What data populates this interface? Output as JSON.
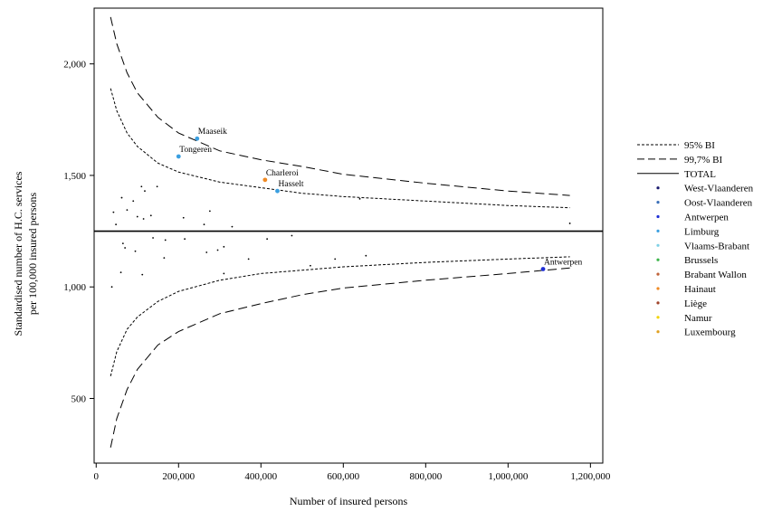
{
  "chart_data": {
    "type": "scatter",
    "title": "",
    "xlabel": "Number of insured persons",
    "ylabel_line1": "Standardised number of H.C. services",
    "ylabel_line2": "per 100,000 insured persons",
    "xlim": [
      -5000,
      1230000
    ],
    "ylim": [
      210,
      2250
    ],
    "x_ticks": [
      0,
      200000,
      400000,
      600000,
      800000,
      1000000,
      1200000
    ],
    "x_tick_labels": [
      "0",
      "200,000",
      "400,000",
      "600,000",
      "800,000",
      "1,000,000",
      "1,200,000"
    ],
    "y_ticks": [
      500,
      1000,
      1500,
      2000
    ],
    "y_tick_labels": [
      "500",
      "1,000",
      "1,500",
      "2,000"
    ],
    "grid": false,
    "legend_position": "right",
    "total_value": 1250,
    "bands": {
      "x": [
        35000,
        50000,
        75000,
        100000,
        150000,
        200000,
        300000,
        400000,
        500000,
        600000,
        800000,
        1000000,
        1150000
      ],
      "upper_997": [
        2210,
        2090,
        1960,
        1870,
        1760,
        1690,
        1610,
        1570,
        1540,
        1505,
        1465,
        1430,
        1410
      ],
      "upper_95": [
        1890,
        1790,
        1690,
        1630,
        1555,
        1515,
        1470,
        1445,
        1420,
        1405,
        1385,
        1365,
        1355
      ],
      "lower_95": [
        600,
        710,
        810,
        865,
        935,
        980,
        1030,
        1060,
        1075,
        1090,
        1110,
        1125,
        1135
      ],
      "lower_997": [
        280,
        410,
        540,
        630,
        740,
        800,
        880,
        925,
        965,
        995,
        1030,
        1060,
        1085
      ]
    },
    "legend": [
      {
        "key": "ci95",
        "label": "95% BI",
        "style": "dotted"
      },
      {
        "key": "ci997",
        "label": "99,7% BI",
        "style": "dashed"
      },
      {
        "key": "total",
        "label": "TOTAL",
        "style": "solid"
      }
    ],
    "regions": [
      {
        "name": "West-Vlaanderen",
        "color": "#1a1a6e"
      },
      {
        "name": "Oost-Vlaanderen",
        "color": "#3a6fb8"
      },
      {
        "name": "Antwerpen",
        "color": "#1f2fd6"
      },
      {
        "name": "Limburg",
        "color": "#3b9fe0"
      },
      {
        "name": "Vlaams-Brabant",
        "color": "#7fd0e6"
      },
      {
        "name": "Brussels",
        "color": "#3cb54a"
      },
      {
        "name": "Brabant Wallon",
        "color": "#c0643a"
      },
      {
        "name": "Hainaut",
        "color": "#f08a24"
      },
      {
        "name": "Liège",
        "color": "#a0442a"
      },
      {
        "name": "Namur",
        "color": "#f2d400"
      },
      {
        "name": "Luxembourg",
        "color": "#e0a020"
      }
    ],
    "points": [
      {
        "x": 245000,
        "y": 1665,
        "color": "#3b9fe0",
        "label": "Maaseik"
      },
      {
        "x": 200000,
        "y": 1585,
        "color": "#3b9fe0",
        "label": "Tongeren"
      },
      {
        "x": 410000,
        "y": 1480,
        "color": "#f08a24",
        "label": "Charleroi"
      },
      {
        "x": 440000,
        "y": 1430,
        "color": "#3b9fe0",
        "label": "Hasselt"
      },
      {
        "x": 1085000,
        "y": 1080,
        "color": "#1f2fd6",
        "label": "Antwerpen"
      },
      {
        "x": 42000,
        "y": 1335,
        "color": "#000000"
      },
      {
        "x": 48000,
        "y": 1280,
        "color": "#000000"
      },
      {
        "x": 62000,
        "y": 1400,
        "color": "#000000"
      },
      {
        "x": 75000,
        "y": 1345,
        "color": "#000000"
      },
      {
        "x": 90000,
        "y": 1385,
        "color": "#000000"
      },
      {
        "x": 100000,
        "y": 1315,
        "color": "#000000"
      },
      {
        "x": 110000,
        "y": 1450,
        "color": "#000000"
      },
      {
        "x": 118000,
        "y": 1430,
        "color": "#000000"
      },
      {
        "x": 115000,
        "y": 1305,
        "color": "#000000"
      },
      {
        "x": 133000,
        "y": 1320,
        "color": "#000000"
      },
      {
        "x": 148000,
        "y": 1450,
        "color": "#000000"
      },
      {
        "x": 212000,
        "y": 1310,
        "color": "#000000"
      },
      {
        "x": 262000,
        "y": 1280,
        "color": "#000000"
      },
      {
        "x": 276000,
        "y": 1340,
        "color": "#000000"
      },
      {
        "x": 330000,
        "y": 1270,
        "color": "#000000"
      },
      {
        "x": 640000,
        "y": 1395,
        "color": "#000000"
      },
      {
        "x": 1150000,
        "y": 1285,
        "color": "#000000"
      },
      {
        "x": 65000,
        "y": 1195,
        "color": "#000000"
      },
      {
        "x": 70000,
        "y": 1175,
        "color": "#000000"
      },
      {
        "x": 95000,
        "y": 1160,
        "color": "#000000"
      },
      {
        "x": 138000,
        "y": 1220,
        "color": "#000000"
      },
      {
        "x": 165000,
        "y": 1130,
        "color": "#000000"
      },
      {
        "x": 168000,
        "y": 1210,
        "color": "#000000"
      },
      {
        "x": 215000,
        "y": 1215,
        "color": "#000000"
      },
      {
        "x": 268000,
        "y": 1155,
        "color": "#000000"
      },
      {
        "x": 295000,
        "y": 1165,
        "color": "#000000"
      },
      {
        "x": 310000,
        "y": 1180,
        "color": "#000000"
      },
      {
        "x": 370000,
        "y": 1125,
        "color": "#000000"
      },
      {
        "x": 415000,
        "y": 1215,
        "color": "#000000"
      },
      {
        "x": 475000,
        "y": 1230,
        "color": "#000000"
      },
      {
        "x": 520000,
        "y": 1095,
        "color": "#000000"
      },
      {
        "x": 580000,
        "y": 1125,
        "color": "#000000"
      },
      {
        "x": 655000,
        "y": 1140,
        "color": "#000000"
      },
      {
        "x": 60000,
        "y": 1065,
        "color": "#000000"
      },
      {
        "x": 112000,
        "y": 1055,
        "color": "#000000"
      },
      {
        "x": 310000,
        "y": 1060,
        "color": "#000000"
      },
      {
        "x": 38000,
        "y": 1000,
        "color": "#000000"
      }
    ]
  }
}
